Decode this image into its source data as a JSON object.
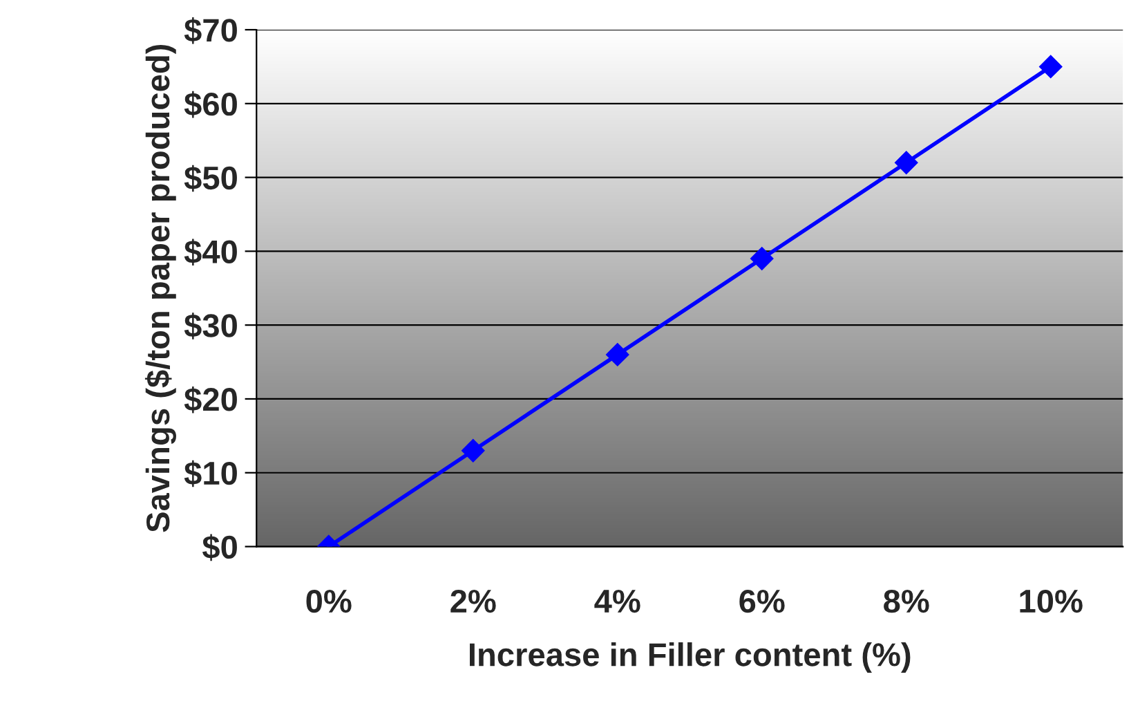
{
  "chart_data": {
    "type": "line",
    "xlabel": "Increase in Filler content (%)",
    "ylabel": "Savings ($/ton paper produced)",
    "categories": [
      "0%",
      "2%",
      "4%",
      "6%",
      "8%",
      "10%"
    ],
    "series": [
      {
        "color": "#0000ff",
        "values": [
          0,
          13,
          26,
          39,
          52,
          65
        ]
      }
    ],
    "ylim": [
      0,
      70
    ],
    "yticks": [
      {
        "value": 0,
        "label": "$0"
      },
      {
        "value": 10,
        "label": "$10"
      },
      {
        "value": 20,
        "label": "$20"
      },
      {
        "value": 30,
        "label": "$30"
      },
      {
        "value": 40,
        "label": "$40"
      },
      {
        "value": 50,
        "label": "$50"
      },
      {
        "value": 60,
        "label": "$60"
      },
      {
        "value": 70,
        "label": "$70"
      }
    ],
    "grid": "y",
    "marker": "diamond",
    "line_style": "solid",
    "legend": false
  }
}
